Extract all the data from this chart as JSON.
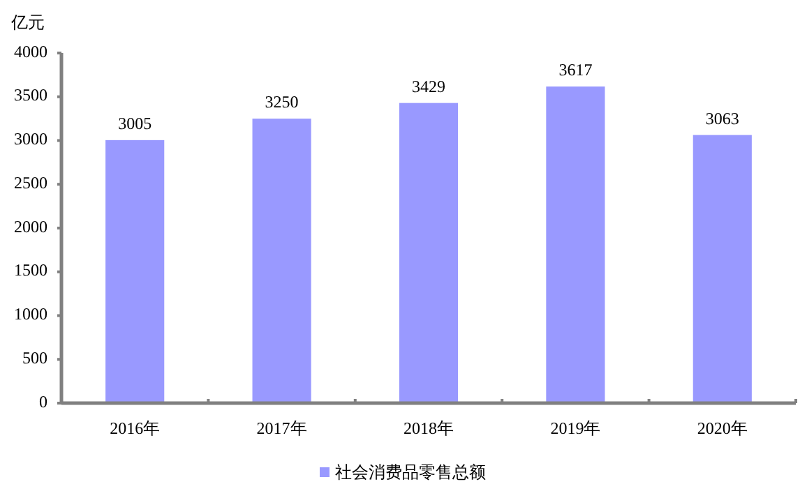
{
  "chart_data": {
    "type": "bar",
    "ylabel": "亿元",
    "categories": [
      "2016年",
      "2017年",
      "2018年",
      "2019年",
      "2020年"
    ],
    "series": [
      {
        "name": "社会消费品零售总额",
        "color": "#9999ff",
        "values": [
          3005,
          3250,
          3429,
          3617,
          3063
        ]
      }
    ],
    "ylim": [
      0,
      4000
    ],
    "yticks": [
      0,
      500,
      1000,
      1500,
      2000,
      2500,
      3000,
      3500,
      4000
    ],
    "data_labels": true,
    "grid": false,
    "legend": "bottom"
  }
}
